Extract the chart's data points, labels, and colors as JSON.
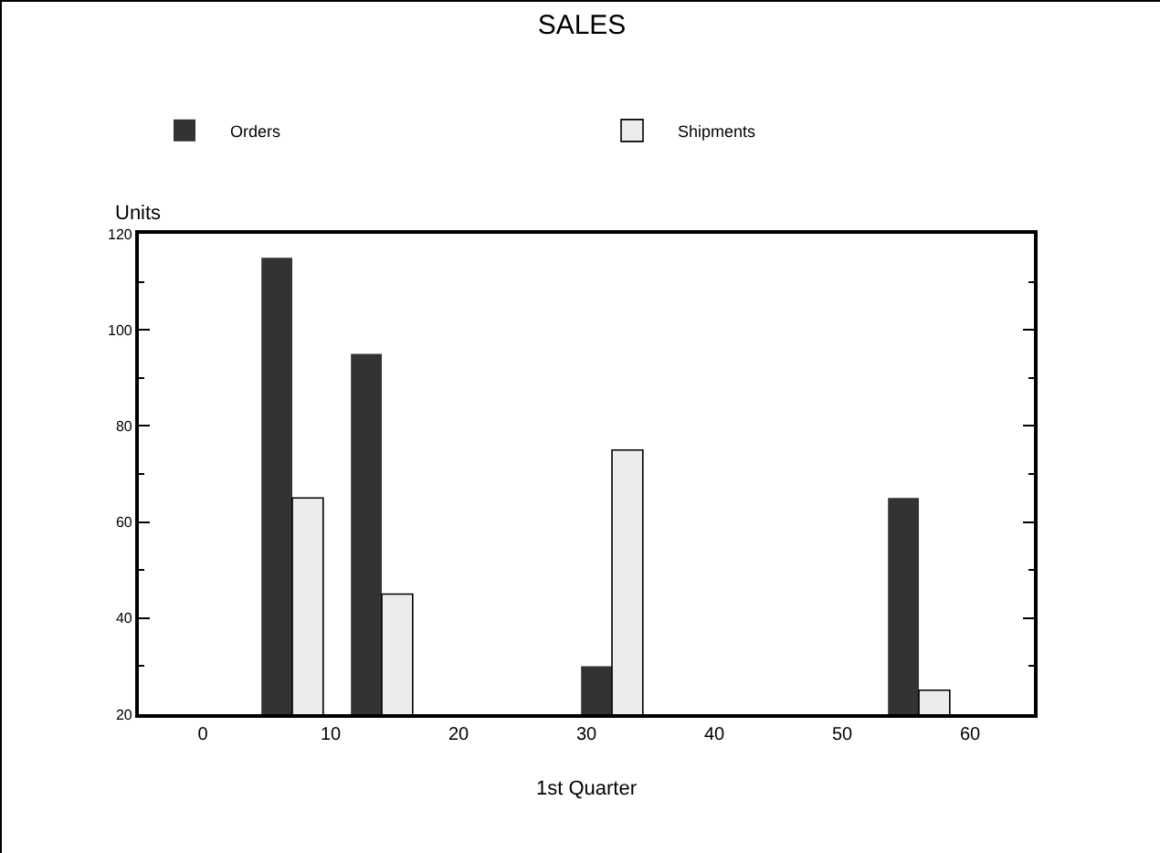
{
  "chart_data": {
    "type": "bar",
    "title": "SALES",
    "xlabel": "1st Quarter",
    "ylabel": "Units",
    "x": [
      7,
      14,
      32,
      56
    ],
    "series": [
      {
        "name": "Orders",
        "color": "#333333",
        "values": [
          115,
          95,
          30,
          65
        ]
      },
      {
        "name": "Shipments",
        "color": "#ececec",
        "values": [
          65,
          45,
          75,
          25
        ]
      }
    ],
    "xlim": [
      -5,
      65
    ],
    "xticks": [
      0,
      10,
      20,
      30,
      40,
      50,
      60
    ],
    "ylim": [
      20,
      120
    ],
    "yticks": [
      20,
      40,
      60,
      80,
      100,
      120
    ],
    "grid": false,
    "legend": "top"
  }
}
